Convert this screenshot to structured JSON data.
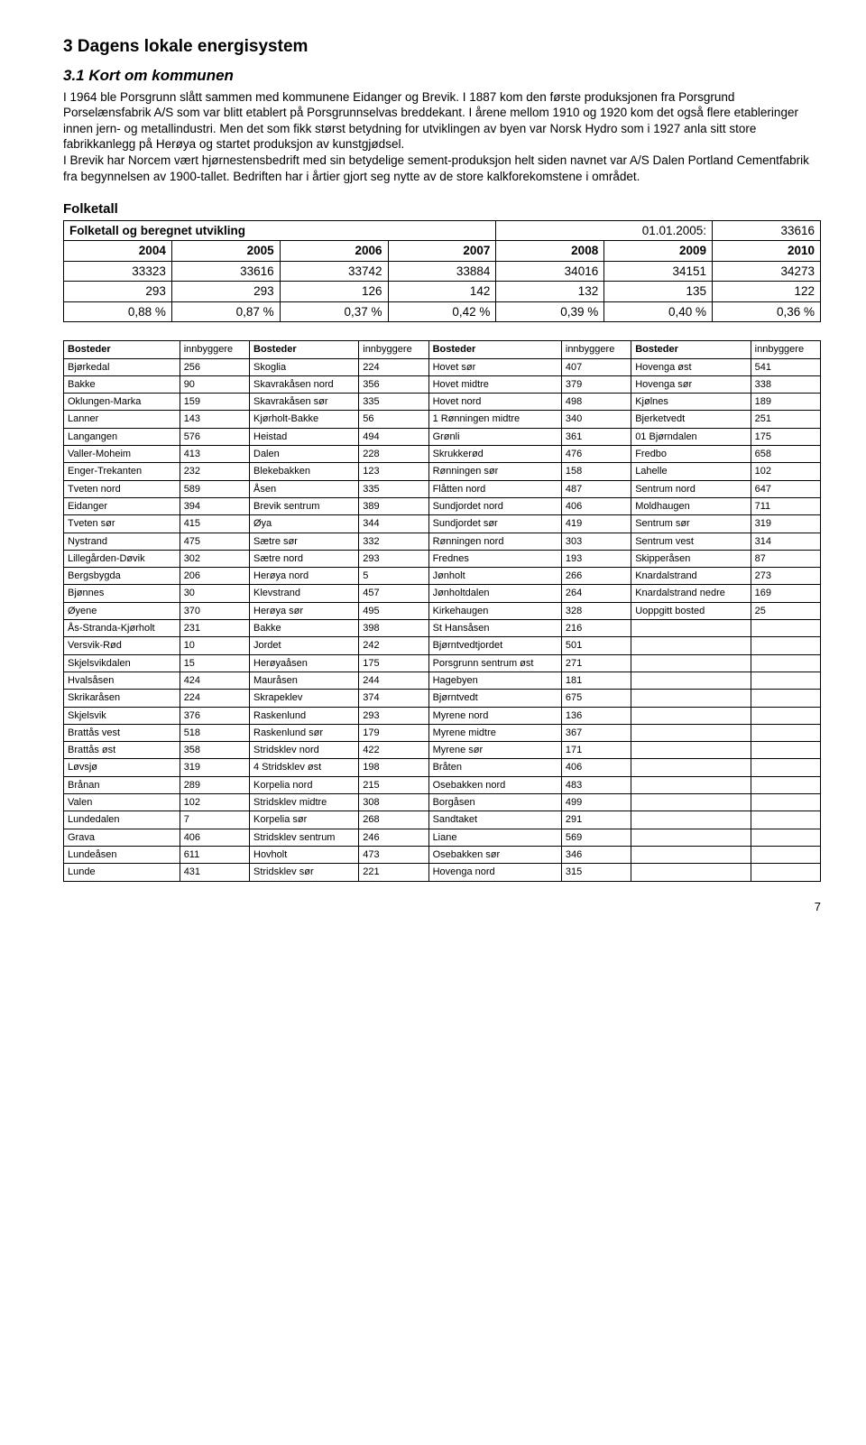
{
  "heading1": "3  Dagens lokale energisystem",
  "heading2": "3.1  Kort om kommunen",
  "intro": "I 1964 ble Porsgrunn slått sammen med kommunene Eidanger og Brevik.  I 1887 kom den første produksjonen fra Porsgrund Porselænsfabrik A/S som var blitt etablert på Porsgrunnselvas breddekant. I årene mellom 1910 og 1920 kom det også flere etableringer innen jern- og metallindustri. Men det som fikk størst betydning for utviklingen av byen var Norsk Hydro som i 1927 anla sitt store fabrikkanlegg på Herøya og startet produksjon av kunstgjødsel.\nI Brevik har Norcem vært hjørnestensbedrift med sin betydelige sement-produksjon helt siden navnet var A/S Dalen Portland Cementfabrik fra begynnelsen av 1900-tallet. Bedriften har i årtier gjort seg nytte av de store kalkforekomstene i området.",
  "section_label": "Folketall",
  "folketall": {
    "title": "Folketall og beregnet utvikling",
    "date_label": "01.01.2005:",
    "date_value": "33616",
    "years": [
      "2004",
      "2005",
      "2006",
      "2007",
      "2008",
      "2009",
      "2010"
    ],
    "row1": [
      "33323",
      "33616",
      "33742",
      "33884",
      "34016",
      "34151",
      "34273"
    ],
    "row2": [
      "293",
      "293",
      "126",
      "142",
      "132",
      "135",
      "122"
    ],
    "row3": [
      "0,88 %",
      "0,87 %",
      "0,37 %",
      "0,42 %",
      "0,39 %",
      "0,40 %",
      "0,36 %"
    ]
  },
  "bosteder": {
    "col_headers": [
      "Bosteder",
      "innbyggere",
      "Bosteder",
      "innbyggere",
      "Bosteder",
      "innbyggere",
      "Bosteder",
      "innbyggere"
    ],
    "rows": [
      [
        "Bjørkedal",
        "256",
        "Skoglia",
        "224",
        "Hovet sør",
        "407",
        "Hovenga øst",
        "541"
      ],
      [
        "Bakke",
        "90",
        "Skavrakåsen nord",
        "356",
        "Hovet midtre",
        "379",
        "Hovenga sør",
        "338"
      ],
      [
        "Oklungen-Marka",
        "159",
        "Skavrakåsen sør",
        "335",
        "Hovet nord",
        "498",
        "Kjølnes",
        "189"
      ],
      [
        "Lanner",
        "143",
        "Kjørholt-Bakke",
        "56",
        "1 Rønningen midtre",
        "340",
        "Bjerketvedt",
        "251"
      ],
      [
        "Langangen",
        "576",
        "Heistad",
        "494",
        "Grønli",
        "361",
        "01 Bjørndalen",
        "175"
      ],
      [
        "Valler-Moheim",
        "413",
        "Dalen",
        "228",
        "Skrukkerød",
        "476",
        "Fredbo",
        "658"
      ],
      [
        "Enger-Trekanten",
        "232",
        "Blekebakken",
        "123",
        "Rønningen sør",
        "158",
        "Lahelle",
        "102"
      ],
      [
        "Tveten nord",
        "589",
        "Åsen",
        "335",
        "Flåtten nord",
        "487",
        "Sentrum nord",
        "647"
      ],
      [
        "Eidanger",
        "394",
        "Brevik sentrum",
        "389",
        "Sundjordet nord",
        "406",
        "Moldhaugen",
        "711"
      ],
      [
        "Tveten sør",
        "415",
        "Øya",
        "344",
        "Sundjordet sør",
        "419",
        "Sentrum sør",
        "319"
      ],
      [
        "Nystrand",
        "475",
        "Sætre sør",
        "332",
        "Rønningen nord",
        "303",
        "Sentrum vest",
        "314"
      ],
      [
        "Lillegården-Døvik",
        "302",
        "Sætre nord",
        "293",
        "Frednes",
        "193",
        "Skipperåsen",
        "87"
      ],
      [
        "Bergsbygda",
        "206",
        "Herøya nord",
        "5",
        "Jønholt",
        "266",
        "Knardalstrand",
        "273"
      ],
      [
        "Bjønnes",
        "30",
        "Klevstrand",
        "457",
        "Jønholtdalen",
        "264",
        "Knardalstrand nedre",
        "169"
      ],
      [
        "Øyene",
        "370",
        "Herøya sør",
        "495",
        "Kirkehaugen",
        "328",
        "Uoppgitt bosted",
        "25"
      ],
      [
        "Ås-Stranda-Kjørholt",
        "231",
        "Bakke",
        "398",
        "St Hansåsen",
        "216",
        "",
        ""
      ],
      [
        "Versvik-Rød",
        "10",
        "Jordet",
        "242",
        "Bjørntvedtjordet",
        "501",
        "",
        ""
      ],
      [
        "Skjelsvikdalen",
        "15",
        "Herøyaåsen",
        "175",
        "Porsgrunn sentrum øst",
        "271",
        "",
        ""
      ],
      [
        "Hvalsåsen",
        "424",
        "Mauråsen",
        "244",
        "Hagebyen",
        "181",
        "",
        ""
      ],
      [
        "Skrikaråsen",
        "224",
        "Skrapeklev",
        "374",
        "Bjørntvedt",
        "675",
        "",
        ""
      ],
      [
        "Skjelsvik",
        "376",
        "Raskenlund",
        "293",
        "Myrene nord",
        "136",
        "",
        ""
      ],
      [
        "Brattås vest",
        "518",
        "Raskenlund sør",
        "179",
        "Myrene midtre",
        "367",
        "",
        ""
      ],
      [
        "Brattås øst",
        "358",
        "Stridsklev nord",
        "422",
        "Myrene sør",
        "171",
        "",
        ""
      ],
      [
        "Løvsjø",
        "319",
        "4 Stridsklev øst",
        "198",
        "Bråten",
        "406",
        "",
        ""
      ],
      [
        "Brånan",
        "289",
        "Korpelia nord",
        "215",
        "Osebakken nord",
        "483",
        "",
        ""
      ],
      [
        "Valen",
        "102",
        "Stridsklev midtre",
        "308",
        "Borgåsen",
        "499",
        "",
        ""
      ],
      [
        "Lundedalen",
        "7",
        "Korpelia sør",
        "268",
        "Sandtaket",
        "291",
        "",
        ""
      ],
      [
        "Grava",
        "406",
        "Stridsklev sentrum",
        "246",
        "Liane",
        "569",
        "",
        ""
      ],
      [
        "Lundeåsen",
        "611",
        "Hovholt",
        "473",
        "Osebakken sør",
        "346",
        "",
        ""
      ],
      [
        "Lunde",
        "431",
        "Stridsklev sør",
        "221",
        "Hovenga nord",
        "315",
        "",
        ""
      ]
    ]
  },
  "page_number": "7"
}
